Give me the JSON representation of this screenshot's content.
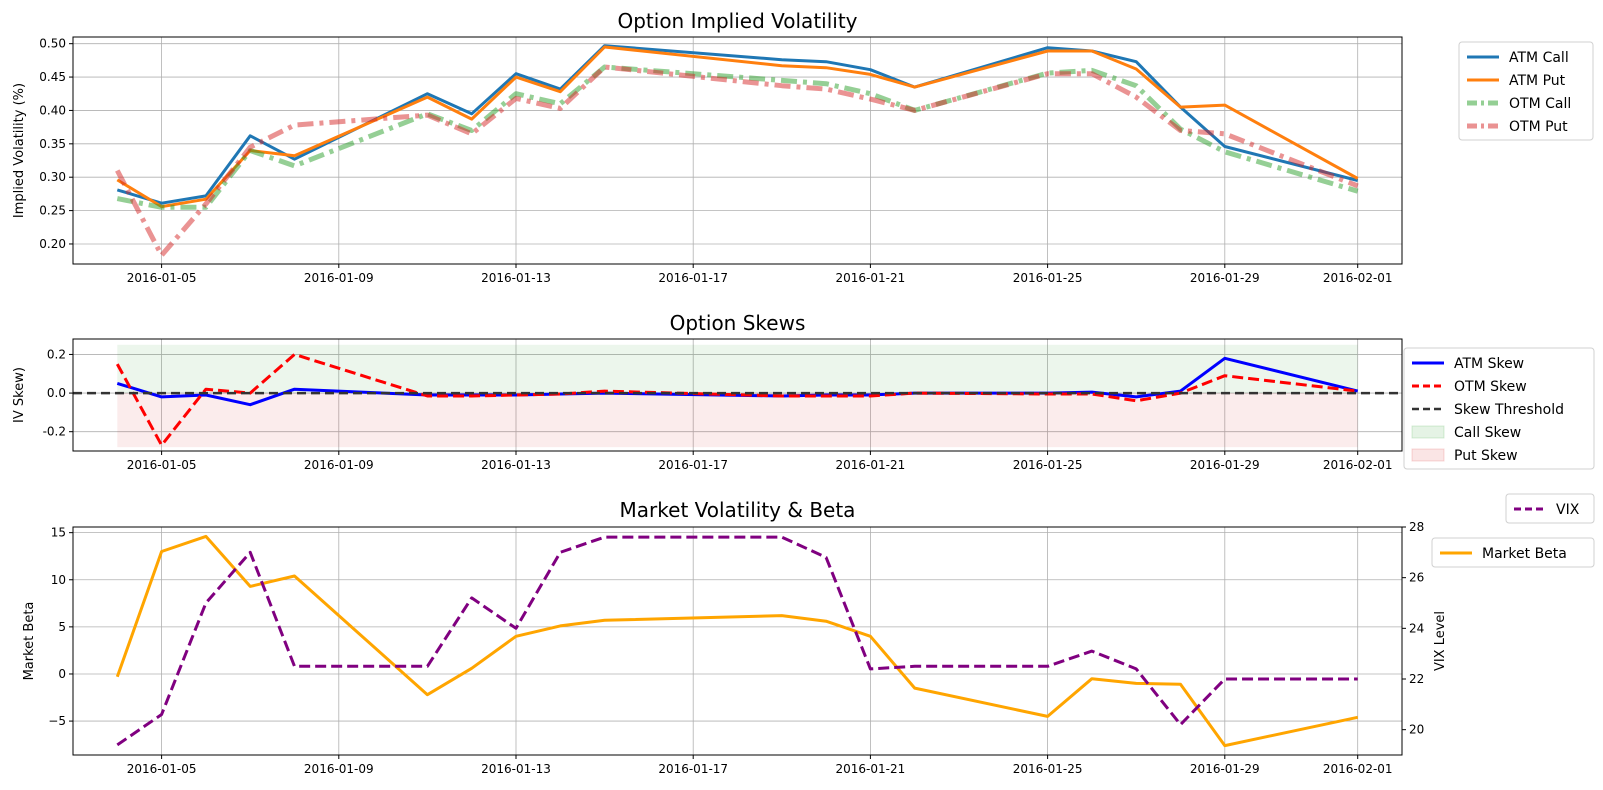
{
  "chart_data": [
    {
      "type": "line",
      "title": "Option Implied Volatility",
      "xlabel": "",
      "ylabel": "Implied Volatility (%)",
      "grid": true,
      "legend_position": "outside-top-right",
      "x": [
        "2016-01-04",
        "2016-01-05",
        "2016-01-06",
        "2016-01-07",
        "2016-01-08",
        "2016-01-11",
        "2016-01-12",
        "2016-01-13",
        "2016-01-14",
        "2016-01-15",
        "2016-01-19",
        "2016-01-20",
        "2016-01-21",
        "2016-01-22",
        "2016-01-25",
        "2016-01-26",
        "2016-01-27",
        "2016-01-28",
        "2016-01-29",
        "2016-02-01"
      ],
      "xticks": [
        "2016-01-05",
        "2016-01-09",
        "2016-01-13",
        "2016-01-17",
        "2016-01-21",
        "2016-01-25",
        "2016-01-29",
        "2016-02-01"
      ],
      "ylim": [
        0.17,
        0.51
      ],
      "yticks": [
        0.2,
        0.25,
        0.3,
        0.35,
        0.4,
        0.45,
        0.5
      ],
      "series": [
        {
          "name": "ATM Call",
          "color": "#1f77b4",
          "style": "solid",
          "values": [
            0.281,
            0.261,
            0.272,
            0.362,
            0.327,
            0.425,
            0.395,
            0.455,
            0.432,
            0.497,
            0.476,
            0.473,
            0.461,
            0.435,
            0.494,
            0.489,
            0.473,
            0.405,
            0.346,
            0.295
          ]
        },
        {
          "name": "ATM Put",
          "color": "#ff7f0e",
          "style": "solid",
          "values": [
            0.296,
            0.256,
            0.267,
            0.34,
            0.332,
            0.42,
            0.387,
            0.45,
            0.428,
            0.495,
            0.467,
            0.464,
            0.454,
            0.435,
            0.489,
            0.489,
            0.462,
            0.405,
            0.408,
            0.298
          ]
        },
        {
          "name": "OTM Call",
          "color": "#2ca02c",
          "style": "dashdot",
          "values": [
            0.268,
            0.255,
            0.255,
            0.34,
            0.317,
            0.395,
            0.37,
            0.425,
            0.41,
            0.465,
            0.445,
            0.44,
            0.425,
            0.4,
            0.456,
            0.46,
            0.437,
            0.372,
            0.338,
            0.279
          ]
        },
        {
          "name": "OTM Put",
          "color": "#d62728",
          "style": "dashdot",
          "values": [
            0.31,
            0.183,
            0.26,
            0.345,
            0.378,
            0.393,
            0.365,
            0.418,
            0.403,
            0.465,
            0.437,
            0.432,
            0.417,
            0.4,
            0.455,
            0.455,
            0.42,
            0.37,
            0.365,
            0.287
          ]
        }
      ]
    },
    {
      "type": "line",
      "title": "Option Skews",
      "xlabel": "",
      "ylabel": "IV Skew)",
      "grid": true,
      "legend_position": "outside-right",
      "x": [
        "2016-01-04",
        "2016-01-05",
        "2016-01-06",
        "2016-01-07",
        "2016-01-08",
        "2016-01-11",
        "2016-01-12",
        "2016-01-13",
        "2016-01-14",
        "2016-01-15",
        "2016-01-19",
        "2016-01-20",
        "2016-01-21",
        "2016-01-22",
        "2016-01-25",
        "2016-01-26",
        "2016-01-27",
        "2016-01-28",
        "2016-01-29",
        "2016-02-01"
      ],
      "xticks": [
        "2016-01-05",
        "2016-01-09",
        "2016-01-13",
        "2016-01-17",
        "2016-01-21",
        "2016-01-25",
        "2016-01-29",
        "2016-02-01"
      ],
      "ylim": [
        -0.3,
        0.28
      ],
      "yticks": [
        -0.2,
        0.0,
        0.2
      ],
      "threshold": {
        "name": "Skew Threshold",
        "value": 0.0,
        "color": "#333333"
      },
      "bands": [
        {
          "name": "Call Skew",
          "color": "#2ca02c",
          "from": 0.0,
          "to": 0.25
        },
        {
          "name": "Put Skew",
          "color": "#d62728",
          "from": -0.28,
          "to": 0.0
        }
      ],
      "series": [
        {
          "name": "ATM Skew",
          "color": "#0000ff",
          "style": "solid",
          "values": [
            0.05,
            -0.02,
            -0.01,
            -0.06,
            0.02,
            -0.01,
            -0.01,
            -0.01,
            -0.005,
            0.0,
            -0.015,
            -0.01,
            -0.01,
            0.0,
            0.0,
            0.005,
            -0.02,
            0.01,
            0.18,
            0.01
          ]
        },
        {
          "name": "OTM Skew",
          "color": "#ff0000",
          "style": "dashed",
          "values": [
            0.15,
            -0.27,
            0.02,
            0.0,
            0.2,
            -0.015,
            -0.015,
            -0.01,
            -0.005,
            0.01,
            -0.015,
            -0.015,
            -0.015,
            0.0,
            -0.005,
            -0.005,
            -0.04,
            0.0,
            0.09,
            0.01
          ]
        }
      ]
    },
    {
      "type": "line",
      "title": "Market Volatility & Beta",
      "xlabel": "",
      "ylabel": "Market Beta",
      "ylabel_right": "VIX Level",
      "grid": true,
      "x": [
        "2016-01-04",
        "2016-01-05",
        "2016-01-06",
        "2016-01-07",
        "2016-01-08",
        "2016-01-11",
        "2016-01-12",
        "2016-01-13",
        "2016-01-14",
        "2016-01-15",
        "2016-01-19",
        "2016-01-20",
        "2016-01-21",
        "2016-01-22",
        "2016-01-25",
        "2016-01-26",
        "2016-01-27",
        "2016-01-28",
        "2016-01-29",
        "2016-02-01"
      ],
      "xticks": [
        "2016-01-05",
        "2016-01-09",
        "2016-01-13",
        "2016-01-17",
        "2016-01-21",
        "2016-01-25",
        "2016-01-29",
        "2016-02-01"
      ],
      "ylim": [
        -8.6,
        15.6
      ],
      "yticks": [
        -5,
        0,
        5,
        10,
        15
      ],
      "ylim_right": [
        19.0,
        28.0
      ],
      "yticks_right": [
        20,
        22,
        24,
        26,
        28
      ],
      "series": [
        {
          "name": "Market Beta",
          "axis": "left",
          "color": "#ffa500",
          "style": "solid",
          "legend_position": "outside-right",
          "values": [
            -0.3,
            13.0,
            14.6,
            9.3,
            10.4,
            -2.2,
            0.6,
            4.0,
            5.1,
            5.7,
            6.2,
            5.6,
            4.0,
            -1.5,
            -4.5,
            -0.5,
            -1.0,
            -1.1,
            -7.6,
            -4.6
          ]
        },
        {
          "name": "VIX",
          "axis": "right",
          "color": "#800080",
          "style": "dashed",
          "legend_position": "outside-top-right",
          "values": [
            19.4,
            20.6,
            25.0,
            27.0,
            22.5,
            22.5,
            25.2,
            24.0,
            27.0,
            27.6,
            27.6,
            26.8,
            22.4,
            22.5,
            22.5,
            23.1,
            22.4,
            20.2,
            22.0,
            22.0
          ]
        }
      ]
    }
  ]
}
